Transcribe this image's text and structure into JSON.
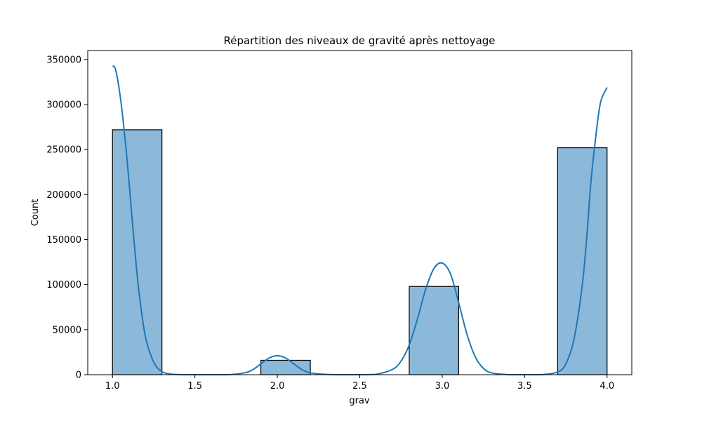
{
  "chart_data": {
    "type": "bar",
    "title": "Répartition des niveaux de gravité après nettoyage",
    "xlabel": "grav",
    "ylabel": "Count",
    "xlim": [
      0.85,
      4.15
    ],
    "ylim": [
      0,
      360000
    ],
    "xticks": [
      "1.0",
      "1.5",
      "2.0",
      "2.5",
      "3.0",
      "3.5",
      "4.0"
    ],
    "yticks": [
      "0",
      "50000",
      "100000",
      "150000",
      "200000",
      "250000",
      "300000",
      "350000"
    ],
    "bins": [
      {
        "x0": 1.0,
        "x1": 1.3,
        "value": 272000
      },
      {
        "x0": 1.9,
        "x1": 2.2,
        "value": 16000
      },
      {
        "x0": 2.8,
        "x1": 3.1,
        "value": 98000
      },
      {
        "x0": 3.7,
        "x1": 4.0,
        "value": 252000
      }
    ],
    "kde": {
      "x": [
        1.0,
        1.02,
        1.05,
        1.08,
        1.1,
        1.13,
        1.16,
        1.2,
        1.25,
        1.3,
        1.35,
        1.4,
        1.5,
        1.6,
        1.7,
        1.8,
        1.85,
        1.9,
        1.95,
        2.0,
        2.05,
        2.1,
        2.15,
        2.2,
        2.3,
        2.4,
        2.5,
        2.6,
        2.7,
        2.75,
        2.8,
        2.85,
        2.9,
        2.95,
        3.0,
        3.05,
        3.1,
        3.15,
        3.2,
        3.25,
        3.3,
        3.4,
        3.5,
        3.6,
        3.7,
        3.75,
        3.8,
        3.85,
        3.88,
        3.9,
        3.93,
        3.96,
        4.0
      ],
      "y": [
        343000,
        338000,
        305000,
        255000,
        215000,
        150000,
        93000,
        42000,
        14000,
        3500,
        800,
        200,
        0,
        0,
        0,
        2000,
        5500,
        12000,
        18500,
        21000,
        18500,
        12000,
        5500,
        2000,
        300,
        0,
        0,
        500,
        6000,
        15000,
        33000,
        62000,
        95000,
        118000,
        124000,
        112000,
        80000,
        45000,
        20000,
        7000,
        2000,
        100,
        0,
        0,
        3000,
        12000,
        40000,
        100000,
        160000,
        210000,
        262000,
        302000,
        319000
      ]
    },
    "colors": {
      "bar_fill": "#8cb8da",
      "bar_edge": "#000000",
      "kde_line": "#1f77b4"
    },
    "grid": false,
    "legend": "none"
  }
}
